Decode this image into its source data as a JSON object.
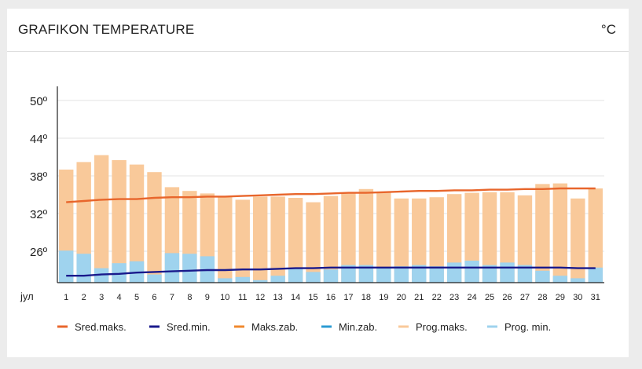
{
  "header": {
    "title": "GRAFIKON TEMPERATURE",
    "unit": "°C"
  },
  "chart_data": {
    "type": "bar",
    "title": "GRAFIKON TEMPERATURE",
    "y_ticks": [
      "50º",
      "44º",
      "38º",
      "32º",
      "26º"
    ],
    "y_tick_values": [
      50,
      44,
      38,
      32,
      26
    ],
    "ylim": [
      21,
      52
    ],
    "month_label": "јул",
    "categories": [
      "1",
      "2",
      "3",
      "4",
      "5",
      "6",
      "7",
      "8",
      "9",
      "10",
      "11",
      "12",
      "13",
      "14",
      "15",
      "16",
      "17",
      "18",
      "19",
      "20",
      "21",
      "22",
      "23",
      "24",
      "25",
      "26",
      "27",
      "28",
      "29",
      "30",
      "31"
    ],
    "series": [
      {
        "name": "Prog.maks.",
        "kind": "bar",
        "color": "#f9c99a",
        "values": [
          39,
          40.2,
          41.3,
          40.5,
          39.8,
          38.6,
          36.2,
          35.6,
          35.2,
          34.6,
          34.2,
          34.7,
          34.7,
          34.5,
          33.8,
          34.8,
          35.2,
          35.9,
          35.5,
          34.4,
          34.4,
          34.6,
          35.1,
          35.3,
          35.4,
          35.4,
          34.9,
          36.7,
          36.8,
          34.4,
          36
        ]
      },
      {
        "name": "Prog. min.",
        "kind": "bar",
        "color": "#9fd3ee",
        "values": [
          26.1,
          25.6,
          23.3,
          24.1,
          24.4,
          22.3,
          25.7,
          25.6,
          25.2,
          21.7,
          21.9,
          21.4,
          22.1,
          23.2,
          22.7,
          23.1,
          23.8,
          23.8,
          23.5,
          23.6,
          23.8,
          23.6,
          24.2,
          24.5,
          23.8,
          24.2,
          23.8,
          22.9,
          22.1,
          21.7,
          23.4
        ]
      },
      {
        "name": "Sred.maks.",
        "kind": "line",
        "color": "#e8662c",
        "values": [
          33.8,
          34,
          34.2,
          34.3,
          34.3,
          34.5,
          34.6,
          34.6,
          34.7,
          34.7,
          34.8,
          34.9,
          35,
          35.1,
          35.1,
          35.2,
          35.3,
          35.3,
          35.4,
          35.5,
          35.6,
          35.6,
          35.7,
          35.7,
          35.8,
          35.8,
          35.9,
          35.9,
          36,
          36,
          36
        ]
      },
      {
        "name": "Sred.min.",
        "kind": "line",
        "color": "#1a1a8c",
        "values": [
          22.1,
          22.1,
          22.3,
          22.4,
          22.6,
          22.7,
          22.8,
          22.9,
          23,
          23,
          23.1,
          23.1,
          23.2,
          23.3,
          23.3,
          23.4,
          23.4,
          23.4,
          23.4,
          23.4,
          23.4,
          23.4,
          23.4,
          23.4,
          23.4,
          23.4,
          23.4,
          23.4,
          23.4,
          23.3,
          23.3
        ]
      }
    ],
    "legend": [
      {
        "label": "Sred.maks.",
        "symbol": "line",
        "color": "#e8662c"
      },
      {
        "label": "Sred.min.",
        "symbol": "line",
        "color": "#1a1a8c"
      },
      {
        "label": "Maks.zab.",
        "symbol": "line",
        "color": "#f0892e"
      },
      {
        "label": "Min.zab.",
        "symbol": "line",
        "color": "#2b9bd3"
      },
      {
        "label": "Prog.maks.",
        "symbol": "line",
        "color": "#f9c99a"
      },
      {
        "label": "Prog. min.",
        "symbol": "line",
        "color": "#9fd3ee"
      }
    ],
    "legend_position": "bottom",
    "grid": true,
    "colors": {
      "grid": "#e3e3e3",
      "axis": "#222222"
    }
  }
}
